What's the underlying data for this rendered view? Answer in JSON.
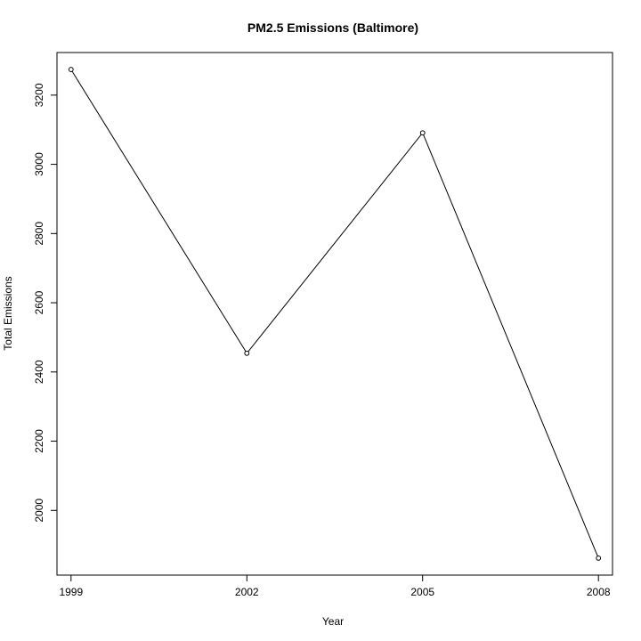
{
  "chart_data": {
    "type": "line",
    "title": "PM2.5 Emissions (Baltimore)",
    "xlabel": "Year",
    "ylabel": "Total Emissions",
    "x": [
      1999,
      2002,
      2005,
      2008
    ],
    "y": [
      3274,
      2454,
      3091,
      1862
    ],
    "xticks": [
      "1999",
      "2002",
      "2005",
      "2008"
    ],
    "yticks": [
      "2000",
      "2200",
      "2400",
      "2600",
      "2800",
      "3000",
      "3200"
    ],
    "xlim": [
      1998.76,
      2008.24
    ],
    "ylim": [
      1812.9,
      3323.1
    ],
    "grid": false,
    "legend": "none",
    "line_color": "#000000",
    "marker": "open-circle"
  }
}
